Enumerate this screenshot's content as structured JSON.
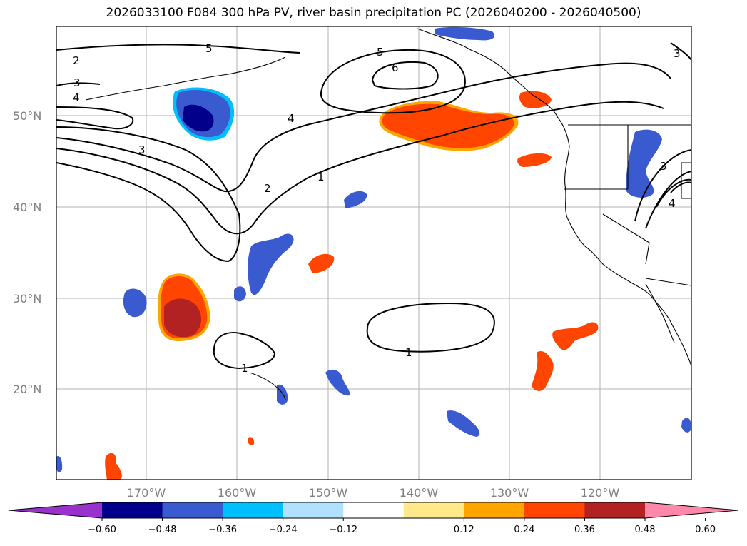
{
  "title": "2026033100 F084 300 hPa PV, river basin precipitation PC (2026040200 - 2026040500)",
  "latitude_labels": [
    "50°N",
    "40°N",
    "30°N",
    "20°N"
  ],
  "longitude_labels": [
    "170°W",
    "160°W",
    "150°W",
    "140°W",
    "130°W",
    "120°W"
  ],
  "pv_contour_labels": [
    "2",
    "3",
    "4",
    "5",
    "5",
    "6",
    "4",
    "3",
    "2",
    "1",
    "3",
    "1",
    "1",
    "4",
    "3"
  ],
  "colorbar": {
    "ticks": [
      "−0.60",
      "−0.48",
      "−0.36",
      "−0.24",
      "−0.12",
      "0.12",
      "0.24",
      "0.36",
      "0.48",
      "0.60"
    ],
    "colors": [
      "#9932cc",
      "#00008b",
      "#3a5bd0",
      "#00bfff",
      "#b0e2ff",
      "#ffffff",
      "#ffe98a",
      "#ffa500",
      "#ff4500",
      "#b22222",
      "#ff88aa"
    ],
    "extend": "both"
  },
  "colors": {
    "ocean": "#ffffff",
    "grid": "#b0b0b0",
    "coast": "#000000",
    "contour": "#000000"
  }
}
